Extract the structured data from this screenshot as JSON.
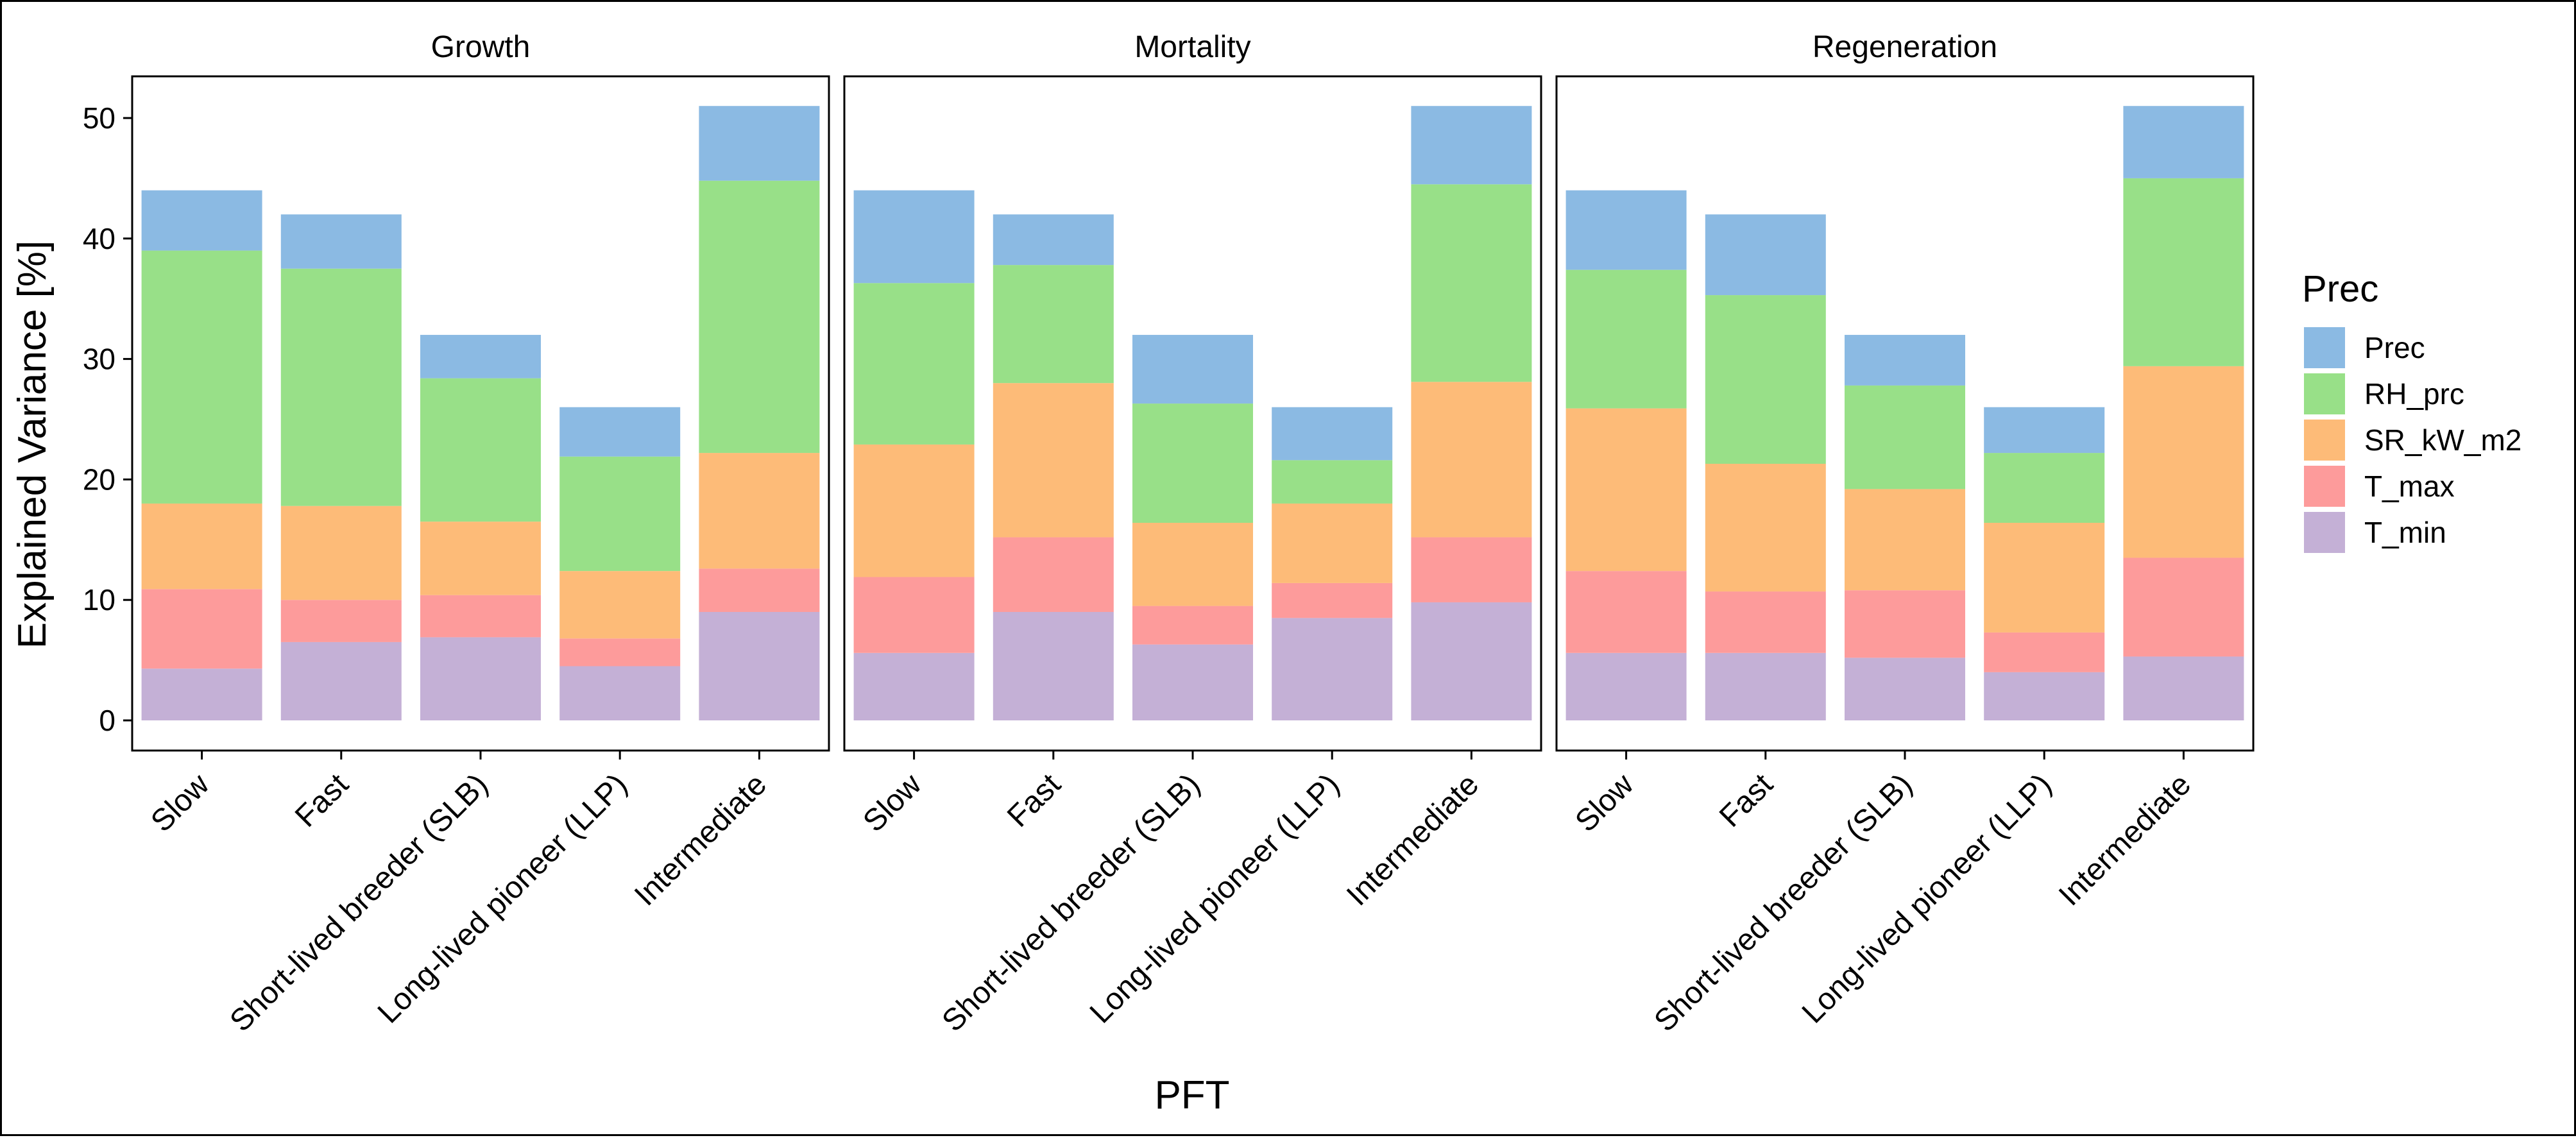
{
  "chart_data": {
    "type": "bar",
    "stacked": true,
    "xlabel": "PFT",
    "ylabel": "Explained Variance [%]",
    "ylim": [
      0,
      55
    ],
    "yticks": [
      0,
      10,
      20,
      30,
      40,
      50
    ],
    "legend": {
      "title": "Prec",
      "position": "right"
    },
    "categories": [
      "Slow",
      "Fast",
      "Short-lived breeder (SLB)",
      "Long-lived pioneer (LLP)",
      "Intermediate"
    ],
    "series_meta": [
      {
        "name": "Prec",
        "color": "#8bbae3"
      },
      {
        "name": "RH_prc",
        "color": "#98e088"
      },
      {
        "name": "SR_kW_m2",
        "color": "#fdbb78"
      },
      {
        "name": "T_max",
        "color": "#fd9b9b"
      },
      {
        "name": "T_min",
        "color": "#c4b0d6"
      }
    ],
    "panels": [
      {
        "title": "Growth",
        "series": [
          {
            "name": "T_min",
            "values": [
              4.3,
              6.5,
              6.9,
              4.5,
              9.0
            ]
          },
          {
            "name": "T_max",
            "values": [
              6.6,
              3.5,
              3.5,
              2.3,
              3.6
            ]
          },
          {
            "name": "SR_kW_m2",
            "values": [
              7.1,
              7.8,
              6.1,
              5.6,
              9.6
            ]
          },
          {
            "name": "RH_prc",
            "values": [
              21.0,
              19.7,
              11.9,
              9.5,
              22.6
            ]
          },
          {
            "name": "Prec",
            "values": [
              5.0,
              4.5,
              3.6,
              4.1,
              6.2
            ]
          }
        ]
      },
      {
        "title": "Mortality",
        "series": [
          {
            "name": "T_min",
            "values": [
              5.6,
              9.0,
              6.3,
              8.5,
              9.8
            ]
          },
          {
            "name": "T_max",
            "values": [
              6.3,
              6.2,
              3.2,
              2.9,
              5.4
            ]
          },
          {
            "name": "SR_kW_m2",
            "values": [
              11.0,
              12.8,
              6.9,
              6.6,
              12.9
            ]
          },
          {
            "name": "RH_prc",
            "values": [
              13.4,
              9.8,
              9.9,
              3.6,
              16.4
            ]
          },
          {
            "name": "Prec",
            "values": [
              7.7,
              4.2,
              5.7,
              4.4,
              6.5
            ]
          }
        ]
      },
      {
        "title": "Regeneration",
        "series": [
          {
            "name": "T_min",
            "values": [
              5.6,
              5.6,
              5.2,
              4.0,
              5.3
            ]
          },
          {
            "name": "T_max",
            "values": [
              6.8,
              5.1,
              5.6,
              3.3,
              8.2
            ]
          },
          {
            "name": "SR_kW_m2",
            "values": [
              13.5,
              10.6,
              8.4,
              9.1,
              15.9
            ]
          },
          {
            "name": "RH_prc",
            "values": [
              11.5,
              14.0,
              8.6,
              5.8,
              15.6
            ]
          },
          {
            "name": "Prec",
            "values": [
              6.6,
              6.7,
              4.2,
              3.8,
              6.0
            ]
          }
        ]
      }
    ]
  }
}
